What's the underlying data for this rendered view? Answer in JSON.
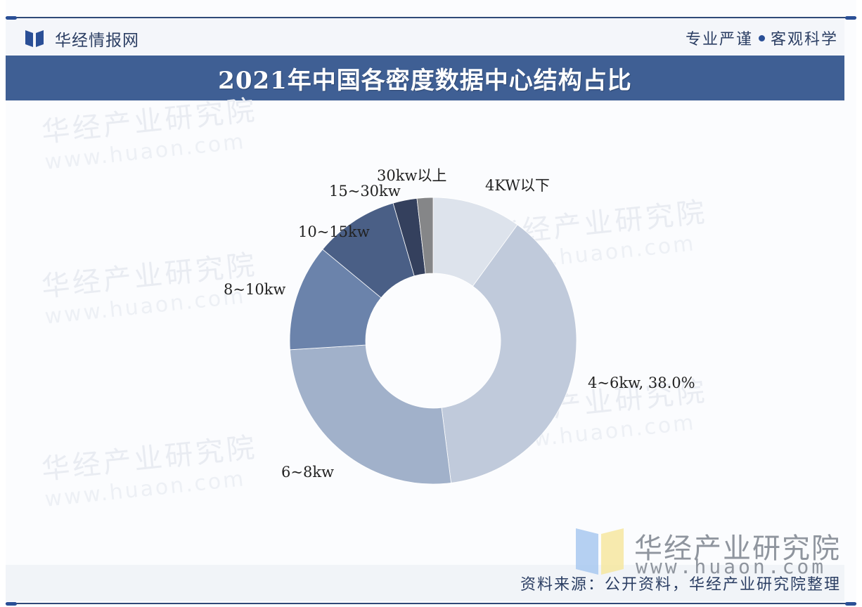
{
  "header": {
    "brand": "华经情报网",
    "slogan_left": "专业严谨",
    "slogan_right": "客观科学"
  },
  "title": "2021年中国各密度数据中心结构占比",
  "watermarks": [
    {
      "text": "华经产业研究院",
      "url": "www.huaon.com"
    }
  ],
  "footer": {
    "watermark_brand": "华经产业研究院",
    "watermark_url": "www.huaon.com",
    "source": "资料来源：公开资料，华经产业研究院整理"
  },
  "colors": {
    "title_bar": "#3f5f94",
    "accent": "#2a4f96"
  },
  "chart_data": {
    "type": "pie",
    "subtype": "donut",
    "title": "2021年中国各密度数据中心结构占比",
    "start_angle_deg": 0,
    "direction": "clockwise",
    "categories": [
      "4KW以下",
      "4~6kw",
      "6~8kw",
      "8~10kw",
      "10~15kw",
      "15~30kw",
      "30kw以上"
    ],
    "values": [
      10.0,
      38.0,
      26.0,
      12.0,
      9.5,
      2.7,
      1.8
    ],
    "unit": "%",
    "colors": [
      "#dde3ec",
      "#c0cadb",
      "#a1b1ca",
      "#6b83ab",
      "#4a5f86",
      "#34405d",
      "#858688"
    ],
    "data_labels": [
      "4KW以下",
      "4~6kw, 38.0%",
      "6~8kw",
      "8~10kw",
      "10~15kw",
      "15~30kw",
      "30kw以上"
    ],
    "labeled_values": {
      "4~6kw": 38.0
    },
    "legend": "none"
  }
}
